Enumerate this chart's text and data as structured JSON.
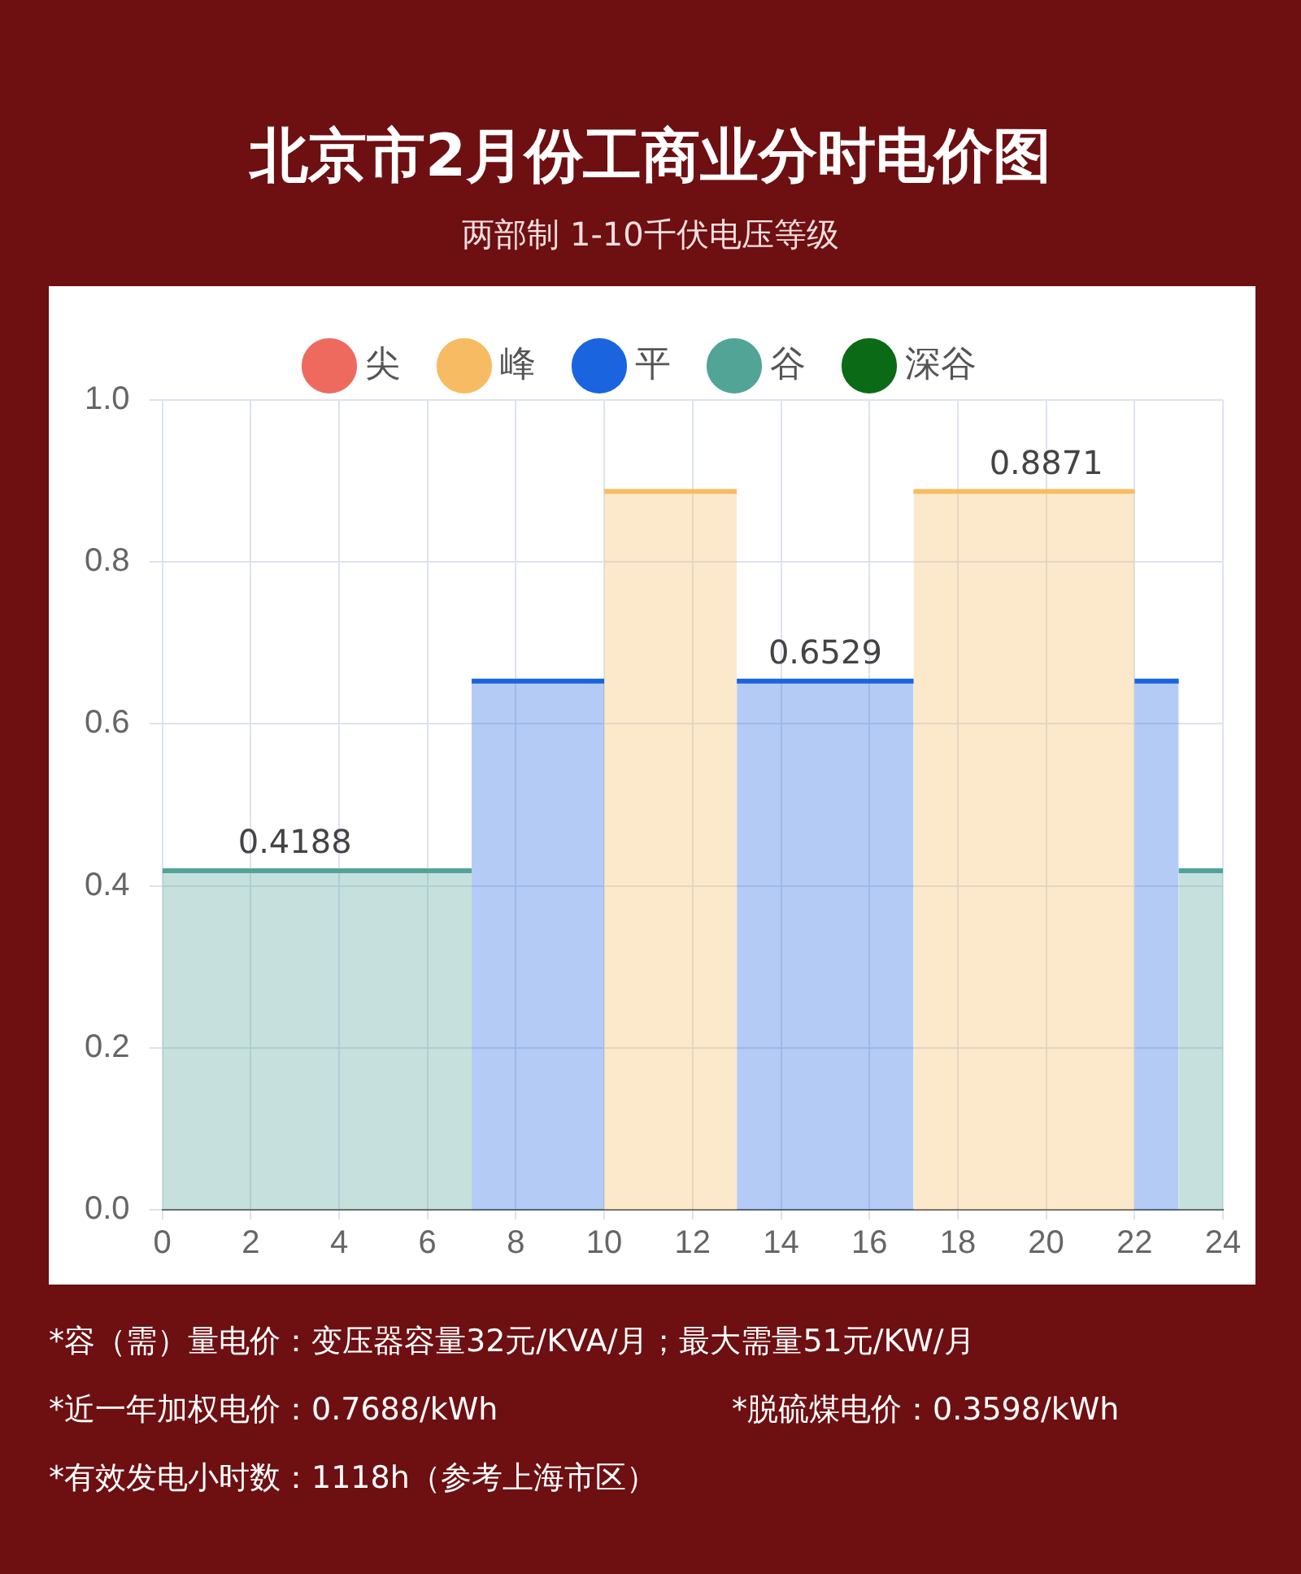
{
  "chart_data": {
    "type": "area",
    "title": "北京市2月份工商业分时电价图",
    "subtitle": "两部制 1-10千伏电压等级",
    "x": [
      0,
      1,
      2,
      3,
      4,
      5,
      6,
      7,
      8,
      9,
      10,
      11,
      12,
      13,
      14,
      15,
      16,
      17,
      18,
      19,
      20,
      21,
      22,
      23,
      24
    ],
    "series": [
      {
        "name": "尖",
        "color": "#ee6a5f",
        "values": [
          null,
          null,
          null,
          null,
          null,
          null,
          null,
          null,
          null,
          null,
          null,
          null,
          null,
          null,
          null,
          null,
          null,
          null,
          null,
          null,
          null,
          null,
          null,
          null,
          null
        ]
      },
      {
        "name": "峰",
        "color": "#f7bc63",
        "values": [
          null,
          null,
          null,
          null,
          null,
          null,
          null,
          null,
          null,
          null,
          0.8871,
          0.8871,
          0.8871,
          0.8871,
          null,
          null,
          null,
          0.8871,
          0.8871,
          0.8871,
          0.8871,
          0.8871,
          0.8871,
          null,
          null
        ],
        "value_labels": [
          null,
          null,
          null,
          null,
          null,
          null,
          null,
          null,
          null,
          null,
          null,
          null,
          null,
          null,
          null,
          null,
          null,
          null,
          null,
          null,
          "0.8871",
          null,
          null,
          null,
          null
        ]
      },
      {
        "name": "平",
        "color": "#1a64e0",
        "values": [
          null,
          null,
          null,
          null,
          null,
          null,
          null,
          0.6529,
          0.6529,
          0.6529,
          0.6529,
          null,
          null,
          0.6529,
          0.6529,
          0.6529,
          0.6529,
          0.6529,
          null,
          null,
          null,
          null,
          0.6529,
          0.6529,
          null
        ],
        "value_labels": [
          null,
          null,
          null,
          null,
          null,
          null,
          null,
          null,
          null,
          null,
          null,
          null,
          null,
          null,
          null,
          "0.6529",
          null,
          null,
          null,
          null,
          null,
          null,
          null,
          null,
          null
        ]
      },
      {
        "name": "谷",
        "color": "#52a497",
        "values": [
          0.4188,
          0.4188,
          0.4188,
          0.4188,
          0.4188,
          0.4188,
          0.4188,
          0.4188,
          null,
          null,
          null,
          null,
          null,
          null,
          null,
          null,
          null,
          null,
          null,
          null,
          null,
          null,
          null,
          0.4188,
          0.4188
        ],
        "value_labels": [
          null,
          null,
          null,
          "0.4188",
          null,
          null,
          null,
          null,
          null,
          null,
          null,
          null,
          null,
          null,
          null,
          null,
          null,
          null,
          null,
          null,
          null,
          null,
          null,
          null,
          null
        ]
      },
      {
        "name": "深谷",
        "color": "#0b6a16",
        "values": [
          null,
          null,
          null,
          null,
          null,
          null,
          null,
          null,
          null,
          null,
          null,
          null,
          null,
          null,
          null,
          null,
          null,
          null,
          null,
          null,
          null,
          null,
          null,
          null,
          null
        ]
      }
    ],
    "xlim": [
      0,
      24
    ],
    "xticks": [
      0,
      2,
      4,
      6,
      8,
      10,
      12,
      14,
      16,
      18,
      20,
      22,
      24
    ],
    "ylim": [
      0,
      1
    ],
    "yticks": [
      {
        "value": 0,
        "label": "0.0"
      },
      {
        "value": 0.2,
        "label": "0.2"
      },
      {
        "value": 0.4,
        "label": "0.4"
      },
      {
        "value": 0.6,
        "label": "0.6"
      },
      {
        "value": 0.8,
        "label": "0.8"
      },
      {
        "value": 1,
        "label": "1.0"
      }
    ],
    "grid": true,
    "legend": "top",
    "marker": "none",
    "line_style": "solid",
    "annotations": [
      "*容（需）量电价：变压器容量32元/KVA/月；最大需量51元/KW/月",
      "*近一年加权电价：0.7688/kWh",
      "*脱硫煤电价：0.3598/kWh",
      "*有效发电小时数：1118h（参考上海市区）"
    ]
  }
}
